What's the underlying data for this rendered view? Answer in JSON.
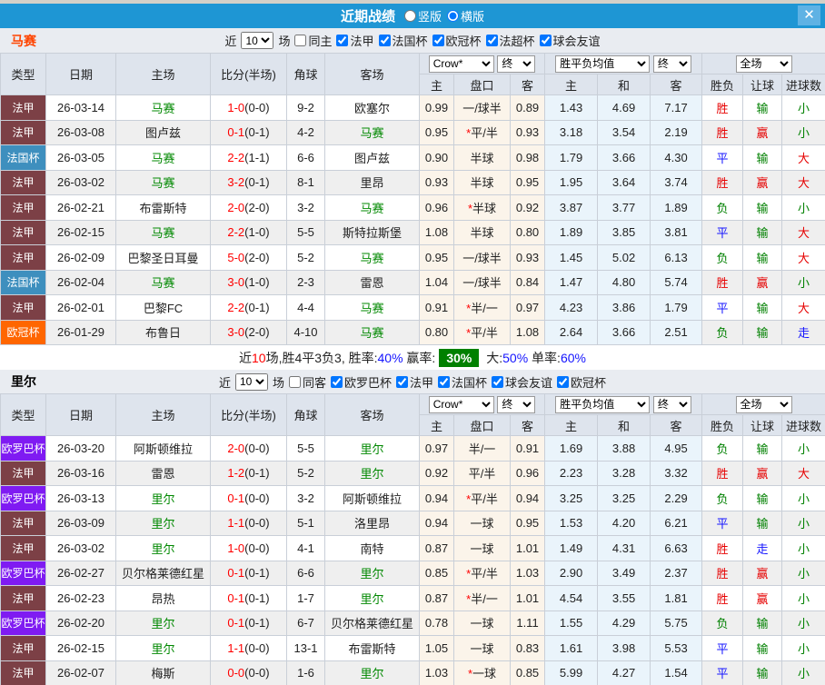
{
  "titlebar": {
    "title": "近期战绩",
    "radio_vertical": "竖版",
    "radio_horizontal": "横版",
    "selected_layout": "横版",
    "close_glyph": "✕"
  },
  "colors": {
    "titlebar_blue": "#1E96D4",
    "badge_green": "#008000",
    "team_green": "#008800",
    "score_red": "#FF0000"
  },
  "type_colors": {
    "法甲": "#7C4046",
    "法国杯": "#3E8FBE",
    "欧冠杯": "#FF6600",
    "欧罗巴杯": "#7F1BF2"
  },
  "result_colors": {
    "胜": "#E60000",
    "赢": "#E60000",
    "大": "#E60000",
    "平": "#1414FF",
    "走": "#1414FF",
    "负": "#008000",
    "输": "#008000",
    "小": "#008000"
  },
  "columns": {
    "type": "类型",
    "date": "日期",
    "home": "主场",
    "score": "比分(半场)",
    "corner": "角球",
    "away": "客场",
    "odds_company": "Crow*",
    "odds_final": "终",
    "mean_group": "胜平负均值",
    "mean_final": "终",
    "full_group": "全场",
    "odds_home": "主",
    "handicap": "盘口",
    "odds_away": "客",
    "mean_home": "主",
    "mean_draw": "和",
    "mean_away": "客",
    "result_wl": "胜负",
    "result_handicap": "让球",
    "result_goals": "进球数"
  },
  "sections": [
    {
      "team": "马赛",
      "name_color": "#FF4400",
      "filter": {
        "prefix": "近",
        "count": "10",
        "suffix": "场",
        "checks": [
          {
            "label": "同主",
            "checked": false
          },
          {
            "label": "法甲",
            "checked": true
          },
          {
            "label": "法国杯",
            "checked": true
          },
          {
            "label": "欧冠杯",
            "checked": true
          },
          {
            "label": "法超杯",
            "checked": true
          },
          {
            "label": "球会友谊",
            "checked": true
          }
        ]
      },
      "rows": [
        {
          "type": "法甲",
          "date": "26-03-14",
          "home": "马赛",
          "score": "1-0",
          "half": "(0-0)",
          "corners": "9-2",
          "away": "欧塞尔",
          "odds_home": "0.99",
          "handicap": "一/球半",
          "star": false,
          "odds_away": "0.89",
          "mean_home": "1.43",
          "mean_draw": "4.69",
          "mean_away": "7.17",
          "res_wl": "胜",
          "res_handicap": "输",
          "res_goals": "小"
        },
        {
          "type": "法甲",
          "date": "26-03-08",
          "home": "图卢兹",
          "score": "0-1",
          "half": "(0-1)",
          "corners": "4-2",
          "away": "马赛",
          "odds_home": "0.95",
          "handicap": "平/半",
          "star": true,
          "odds_away": "0.93",
          "mean_home": "3.18",
          "mean_draw": "3.54",
          "mean_away": "2.19",
          "res_wl": "胜",
          "res_handicap": "赢",
          "res_goals": "小"
        },
        {
          "type": "法国杯",
          "date": "26-03-05",
          "home": "马赛",
          "score": "2-2",
          "half": "(1-1)",
          "corners": "6-6",
          "away": "图卢兹",
          "odds_home": "0.90",
          "handicap": "半球",
          "star": false,
          "odds_away": "0.98",
          "mean_home": "1.79",
          "mean_draw": "3.66",
          "mean_away": "4.30",
          "res_wl": "平",
          "res_handicap": "输",
          "res_goals": "大"
        },
        {
          "type": "法甲",
          "date": "26-03-02",
          "home": "马赛",
          "score": "3-2",
          "half": "(0-1)",
          "corners": "8-1",
          "away": "里昂",
          "odds_home": "0.93",
          "handicap": "半球",
          "star": false,
          "odds_away": "0.95",
          "mean_home": "1.95",
          "mean_draw": "3.64",
          "mean_away": "3.74",
          "res_wl": "胜",
          "res_handicap": "赢",
          "res_goals": "大"
        },
        {
          "type": "法甲",
          "date": "26-02-21",
          "home": "布雷斯特",
          "score": "2-0",
          "half": "(2-0)",
          "corners": "3-2",
          "away": "马赛",
          "odds_home": "0.96",
          "handicap": "半球",
          "star": true,
          "odds_away": "0.92",
          "mean_home": "3.87",
          "mean_draw": "3.77",
          "mean_away": "1.89",
          "res_wl": "负",
          "res_handicap": "输",
          "res_goals": "小"
        },
        {
          "type": "法甲",
          "date": "26-02-15",
          "home": "马赛",
          "score": "2-2",
          "half": "(1-0)",
          "corners": "5-5",
          "away": "斯特拉斯堡",
          "odds_home": "1.08",
          "handicap": "半球",
          "star": false,
          "odds_away": "0.80",
          "mean_home": "1.89",
          "mean_draw": "3.85",
          "mean_away": "3.81",
          "res_wl": "平",
          "res_handicap": "输",
          "res_goals": "大"
        },
        {
          "type": "法甲",
          "date": "26-02-09",
          "home": "巴黎圣日耳曼",
          "score": "5-0",
          "half": "(2-0)",
          "corners": "5-2",
          "away": "马赛",
          "odds_home": "0.95",
          "handicap": "一/球半",
          "star": false,
          "odds_away": "0.93",
          "mean_home": "1.45",
          "mean_draw": "5.02",
          "mean_away": "6.13",
          "res_wl": "负",
          "res_handicap": "输",
          "res_goals": "大"
        },
        {
          "type": "法国杯",
          "date": "26-02-04",
          "home": "马赛",
          "score": "3-0",
          "half": "(1-0)",
          "corners": "2-3",
          "away": "雷恩",
          "odds_home": "1.04",
          "handicap": "一/球半",
          "star": false,
          "odds_away": "0.84",
          "mean_home": "1.47",
          "mean_draw": "4.80",
          "mean_away": "5.74",
          "res_wl": "胜",
          "res_handicap": "赢",
          "res_goals": "小"
        },
        {
          "type": "法甲",
          "date": "26-02-01",
          "home": "巴黎FC",
          "score": "2-2",
          "half": "(0-1)",
          "corners": "4-4",
          "away": "马赛",
          "odds_home": "0.91",
          "handicap": "半/一",
          "star": true,
          "odds_away": "0.97",
          "mean_home": "4.23",
          "mean_draw": "3.86",
          "mean_away": "1.79",
          "res_wl": "平",
          "res_handicap": "输",
          "res_goals": "大"
        },
        {
          "type": "欧冠杯",
          "date": "26-01-29",
          "home": "布鲁日",
          "score": "3-0",
          "half": "(2-0)",
          "corners": "4-10",
          "away": "马赛",
          "odds_home": "0.80",
          "handicap": "平/半",
          "star": true,
          "odds_away": "1.08",
          "mean_home": "2.64",
          "mean_draw": "3.66",
          "mean_away": "2.51",
          "res_wl": "负",
          "res_handicap": "输",
          "res_goals": "走"
        }
      ],
      "summary": {
        "parts": [
          {
            "t": "近",
            "s": "plain"
          },
          {
            "t": "10",
            "s": "red"
          },
          {
            "t": "场,胜4平3负3, 胜率:",
            "s": "plain"
          },
          {
            "t": "40%",
            "s": "blue"
          },
          {
            "t": " 赢率:",
            "s": "plain"
          },
          {
            "t": "30%",
            "s": "badge"
          },
          {
            "t": " 大:",
            "s": "plain"
          },
          {
            "t": "50%",
            "s": "blue"
          },
          {
            "t": " 单率:",
            "s": "plain"
          },
          {
            "t": "60%",
            "s": "blue"
          }
        ]
      }
    },
    {
      "team": "里尔",
      "name_color": "#000000",
      "filter": {
        "prefix": "近",
        "count": "10",
        "suffix": "场",
        "checks": [
          {
            "label": "同客",
            "checked": false
          },
          {
            "label": "欧罗巴杯",
            "checked": true
          },
          {
            "label": "法甲",
            "checked": true
          },
          {
            "label": "法国杯",
            "checked": true
          },
          {
            "label": "球会友谊",
            "checked": true
          },
          {
            "label": "欧冠杯",
            "checked": true
          }
        ]
      },
      "rows": [
        {
          "type": "欧罗巴杯",
          "date": "26-03-20",
          "home": "阿斯顿维拉",
          "score": "2-0",
          "half": "(0-0)",
          "corners": "5-5",
          "away": "里尔",
          "odds_home": "0.97",
          "handicap": "半/一",
          "star": false,
          "odds_away": "0.91",
          "mean_home": "1.69",
          "mean_draw": "3.88",
          "mean_away": "4.95",
          "res_wl": "负",
          "res_handicap": "输",
          "res_goals": "小"
        },
        {
          "type": "法甲",
          "date": "26-03-16",
          "home": "雷恩",
          "score": "1-2",
          "half": "(0-1)",
          "corners": "5-2",
          "away": "里尔",
          "odds_home": "0.92",
          "handicap": "平/半",
          "star": false,
          "odds_away": "0.96",
          "mean_home": "2.23",
          "mean_draw": "3.28",
          "mean_away": "3.32",
          "res_wl": "胜",
          "res_handicap": "赢",
          "res_goals": "大"
        },
        {
          "type": "欧罗巴杯",
          "date": "26-03-13",
          "home": "里尔",
          "score": "0-1",
          "half": "(0-0)",
          "corners": "3-2",
          "away": "阿斯顿维拉",
          "odds_home": "0.94",
          "handicap": "平/半",
          "star": true,
          "odds_away": "0.94",
          "mean_home": "3.25",
          "mean_draw": "3.25",
          "mean_away": "2.29",
          "res_wl": "负",
          "res_handicap": "输",
          "res_goals": "小"
        },
        {
          "type": "法甲",
          "date": "26-03-09",
          "home": "里尔",
          "score": "1-1",
          "half": "(0-0)",
          "corners": "5-1",
          "away": "洛里昂",
          "odds_home": "0.94",
          "handicap": "一球",
          "star": false,
          "odds_away": "0.95",
          "mean_home": "1.53",
          "mean_draw": "4.20",
          "mean_away": "6.21",
          "res_wl": "平",
          "res_handicap": "输",
          "res_goals": "小"
        },
        {
          "type": "法甲",
          "date": "26-03-02",
          "home": "里尔",
          "score": "1-0",
          "half": "(0-0)",
          "corners": "4-1",
          "away": "南特",
          "odds_home": "0.87",
          "handicap": "一球",
          "star": false,
          "odds_away": "1.01",
          "mean_home": "1.49",
          "mean_draw": "4.31",
          "mean_away": "6.63",
          "res_wl": "胜",
          "res_handicap": "走",
          "res_goals": "小"
        },
        {
          "type": "欧罗巴杯",
          "date": "26-02-27",
          "home": "贝尔格莱德红星",
          "score": "0-1",
          "half": "(0-1)",
          "corners": "6-6",
          "away": "里尔",
          "odds_home": "0.85",
          "handicap": "平/半",
          "star": true,
          "odds_away": "1.03",
          "mean_home": "2.90",
          "mean_draw": "3.49",
          "mean_away": "2.37",
          "res_wl": "胜",
          "res_handicap": "赢",
          "res_goals": "小"
        },
        {
          "type": "法甲",
          "date": "26-02-23",
          "home": "昂热",
          "score": "0-1",
          "half": "(0-1)",
          "corners": "1-7",
          "away": "里尔",
          "odds_home": "0.87",
          "handicap": "半/一",
          "star": true,
          "odds_away": "1.01",
          "mean_home": "4.54",
          "mean_draw": "3.55",
          "mean_away": "1.81",
          "res_wl": "胜",
          "res_handicap": "赢",
          "res_goals": "小"
        },
        {
          "type": "欧罗巴杯",
          "date": "26-02-20",
          "home": "里尔",
          "score": "0-1",
          "half": "(0-1)",
          "corners": "6-7",
          "away": "贝尔格莱德红星",
          "odds_home": "0.78",
          "handicap": "一球",
          "star": false,
          "odds_away": "1.11",
          "mean_home": "1.55",
          "mean_draw": "4.29",
          "mean_away": "5.75",
          "res_wl": "负",
          "res_handicap": "输",
          "res_goals": "小"
        },
        {
          "type": "法甲",
          "date": "26-02-15",
          "home": "里尔",
          "score": "1-1",
          "half": "(0-0)",
          "corners": "13-1",
          "away": "布雷斯特",
          "odds_home": "1.05",
          "handicap": "一球",
          "star": false,
          "odds_away": "0.83",
          "mean_home": "1.61",
          "mean_draw": "3.98",
          "mean_away": "5.53",
          "res_wl": "平",
          "res_handicap": "输",
          "res_goals": "小"
        },
        {
          "type": "法甲",
          "date": "26-02-07",
          "home": "梅斯",
          "score": "0-0",
          "half": "(0-0)",
          "corners": "1-6",
          "away": "里尔",
          "odds_home": "1.03",
          "handicap": "一球",
          "star": true,
          "odds_away": "0.85",
          "mean_home": "5.99",
          "mean_draw": "4.27",
          "mean_away": "1.54",
          "res_wl": "平",
          "res_handicap": "输",
          "res_goals": "小"
        }
      ],
      "summary": null
    }
  ]
}
